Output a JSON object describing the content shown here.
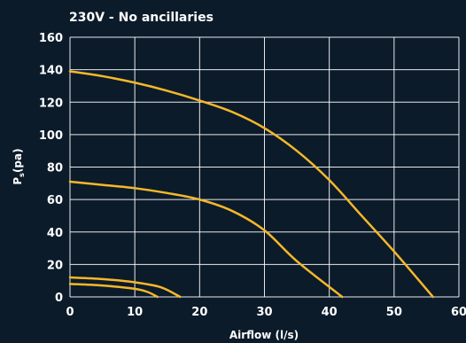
{
  "chart_data": {
    "type": "line",
    "title": "230V - No ancillaries",
    "xlabel": "Airflow (l/s)",
    "ylabel": {
      "main": "P",
      "sub": "s",
      "unit": "(pa)"
    },
    "xlim": [
      0,
      60
    ],
    "ylim": [
      0,
      160
    ],
    "xticks": [
      0,
      10,
      20,
      30,
      40,
      50,
      60
    ],
    "yticks": [
      0,
      20,
      40,
      60,
      80,
      100,
      120,
      140,
      160
    ],
    "grid": true,
    "colors": {
      "background": "#0c1b2a",
      "grid": "#ffffff",
      "series": "#f5b82a",
      "text": "#ffffff"
    },
    "series": [
      {
        "x": [
          0,
          5,
          10,
          15,
          20,
          25,
          30,
          35,
          40,
          45,
          50,
          56
        ],
        "values": [
          139,
          136,
          132,
          127,
          121,
          114,
          104,
          90,
          72,
          50,
          28,
          0
        ]
      },
      {
        "x": [
          0,
          5,
          10,
          15,
          20,
          25,
          30,
          35,
          42
        ],
        "values": [
          71,
          69,
          67,
          64,
          60,
          53,
          41,
          22,
          0
        ]
      },
      {
        "x": [
          0,
          5,
          10,
          14,
          17
        ],
        "values": [
          12,
          11,
          9,
          6,
          0
        ]
      },
      {
        "x": [
          0,
          5,
          10,
          12,
          13.5
        ],
        "values": [
          8,
          7,
          5,
          3,
          0
        ]
      }
    ]
  }
}
